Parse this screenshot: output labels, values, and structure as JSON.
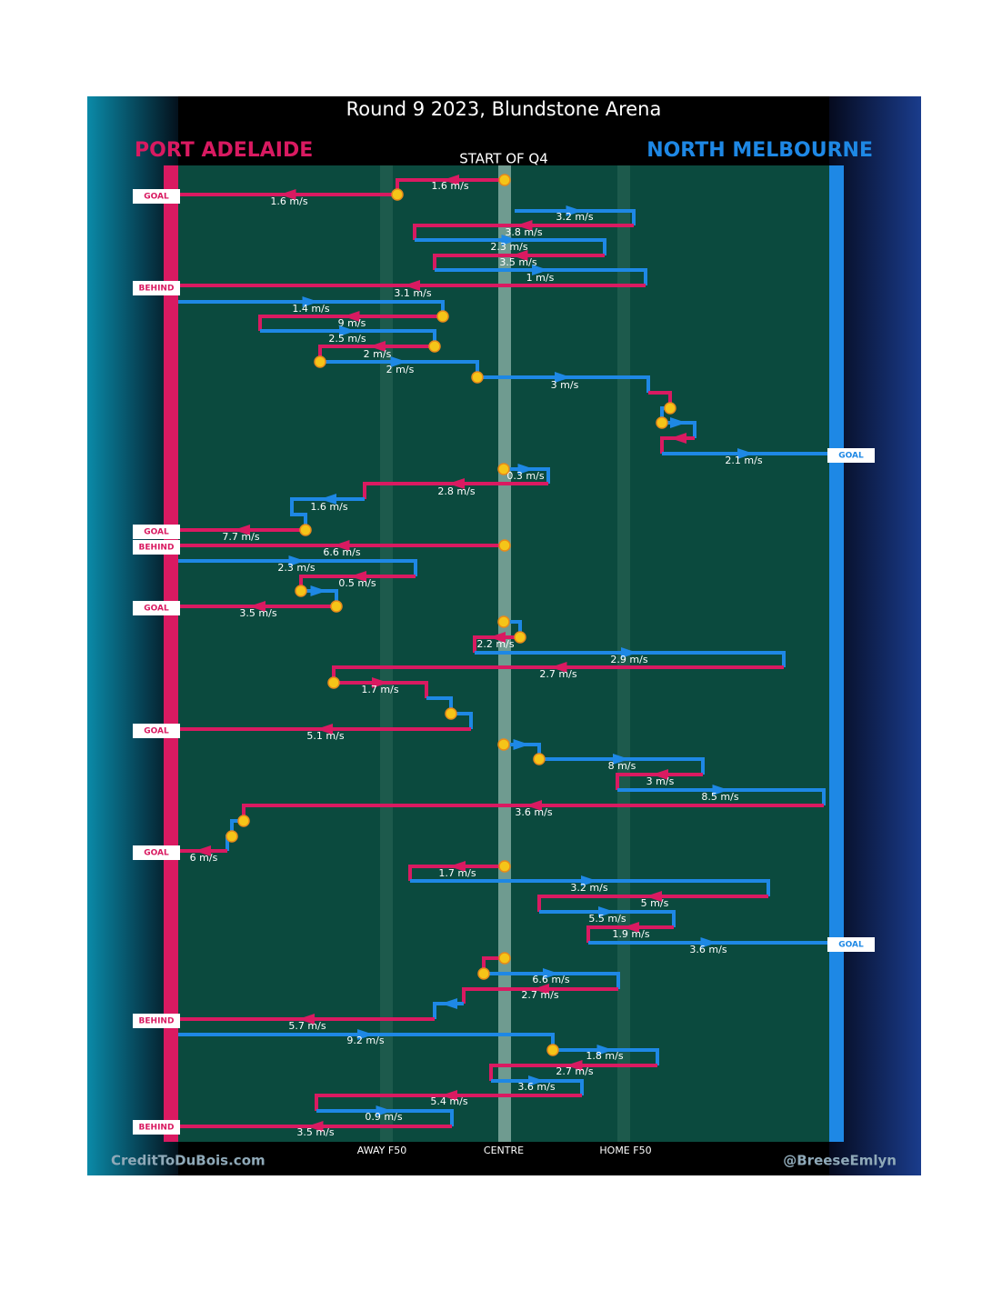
{
  "header": {
    "title": "Round 9 2023, Blundstone Arena",
    "away_team": "PORT ADELAIDE",
    "home_team": "NORTH MELBOURNE",
    "period": "START OF Q4"
  },
  "field_labels": [
    "AWAY F50",
    "CENTRE",
    "HOME F50"
  ],
  "footer": {
    "left": "CreditToDuBois.com",
    "right": "@BreeseEmlyn"
  },
  "outcomes": [
    "GOAL",
    "BEHIND",
    "GOAL",
    "GOAL",
    "BEHIND",
    "GOAL",
    "GOAL",
    "GOAL",
    "GOAL",
    "BEHIND",
    "BEHIND"
  ],
  "speeds": [
    "1.6 m/s",
    "1.6 m/s",
    "3.2 m/s",
    "3.8 m/s",
    "2.3 m/s",
    "3.5 m/s",
    "1 m/s",
    "3.1 m/s",
    "1.4 m/s",
    "9 m/s",
    "2.5 m/s",
    "2 m/s",
    "2 m/s",
    "3 m/s",
    "2.1 m/s",
    "0.3 m/s",
    "2.8 m/s",
    "1.6 m/s",
    "7.7 m/s",
    "6.6 m/s",
    "2.3 m/s",
    "0.5 m/s",
    "3.5 m/s",
    "2.2 m/s",
    "2.9 m/s",
    "2.7 m/s",
    "1.7 m/s",
    "5.1 m/s",
    "8 m/s",
    "3 m/s",
    "8.5 m/s",
    "3.6 m/s",
    "6 m/s",
    "1.7 m/s",
    "3.2 m/s",
    "5 m/s",
    "5.5 m/s",
    "1.9 m/s",
    "3.6 m/s",
    "6.6 m/s",
    "2.7 m/s",
    "5.7 m/s",
    "9.2 m/s",
    "1.8 m/s",
    "2.7 m/s",
    "3.6 m/s",
    "5.4 m/s",
    "0.9 m/s",
    "3.5 m/s"
  ]
}
